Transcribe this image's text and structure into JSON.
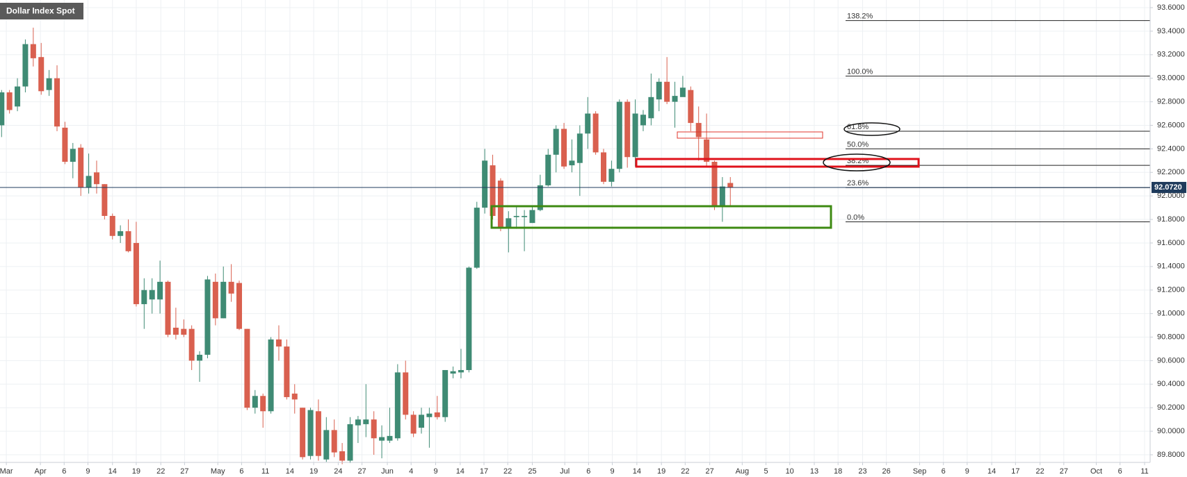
{
  "chart_data": {
    "type": "candlestick",
    "title": "Dollar Index Spot",
    "open": [
      92.6,
      92.88,
      92.76,
      92.93,
      93.29,
      93.18,
      92.9,
      93.0,
      92.58,
      92.29,
      92.41,
      92.07,
      92.2,
      92.1,
      91.83,
      91.66,
      91.7,
      91.6,
      91.08,
      91.12,
      91.12,
      91.27,
      90.88,
      90.87,
      90.87,
      90.6,
      90.65,
      91.27,
      90.96,
      91.27,
      91.26,
      90.87,
      90.2,
      90.3,
      90.17,
      90.78,
      90.72,
      90.32,
      90.2,
      89.79,
      90.17,
      89.76,
      90.01,
      89.83,
      89.75,
      90.05,
      90.06,
      90.1,
      89.92,
      89.92,
      89.94,
      90.5,
      90.14,
      90.03,
      90.12,
      90.16,
      90.12,
      90.49,
      90.5,
      90.52,
      91.39,
      91.9,
      92.26,
      92.13,
      91.73,
      91.82,
      91.82,
      91.77,
      91.88,
      92.09,
      92.35,
      92.57,
      92.26,
      92.28,
      92.53,
      92.7,
      92.37,
      92.12,
      92.23,
      92.8,
      92.33,
      92.6,
      92.66,
      92.82,
      92.97,
      92.8,
      92.84,
      92.9,
      92.62,
      92.48,
      92.29,
      91.91,
      92.11
    ],
    "high": [
      92.9,
      92.9,
      93.0,
      93.33,
      93.43,
      93.3,
      93.07,
      93.11,
      92.63,
      92.45,
      92.44,
      92.36,
      92.3,
      92.1,
      91.85,
      91.75,
      91.8,
      91.78,
      91.3,
      91.3,
      91.45,
      91.28,
      91.05,
      90.95,
      90.9,
      90.68,
      91.32,
      91.34,
      91.4,
      91.42,
      91.28,
      90.87,
      90.35,
      90.32,
      90.8,
      90.9,
      90.78,
      90.4,
      90.2,
      90.2,
      90.27,
      90.12,
      90.1,
      89.9,
      90.12,
      90.13,
      90.4,
      90.17,
      90.05,
      90.2,
      90.57,
      90.6,
      90.17,
      90.2,
      90.2,
      90.3,
      90.52,
      90.55,
      90.7,
      91.4,
      91.95,
      92.4,
      92.35,
      92.15,
      91.87,
      91.92,
      91.88,
      91.92,
      92.18,
      92.4,
      92.6,
      92.62,
      92.48,
      92.6,
      92.84,
      92.72,
      92.4,
      92.3,
      92.82,
      92.82,
      92.82,
      92.73,
      93.04,
      93.0,
      93.18,
      92.97,
      93.02,
      92.93,
      92.76,
      92.7,
      92.3,
      92.16,
      92.16
    ],
    "low": [
      92.5,
      92.7,
      92.72,
      92.88,
      93.1,
      92.86,
      92.85,
      92.55,
      92.27,
      92.15,
      92.0,
      92.02,
      92.02,
      91.8,
      91.63,
      91.6,
      91.52,
      91.06,
      90.87,
      91.0,
      91.0,
      90.8,
      90.78,
      90.8,
      90.52,
      90.42,
      90.62,
      90.9,
      90.96,
      91.1,
      90.86,
      90.18,
      90.15,
      90.03,
      90.15,
      90.6,
      90.27,
      90.15,
      89.76,
      89.76,
      89.75,
      89.74,
      89.78,
      89.72,
      89.73,
      89.9,
      89.95,
      89.8,
      89.77,
      89.9,
      89.92,
      90.1,
      89.95,
      89.98,
      89.86,
      90.1,
      90.08,
      90.45,
      90.45,
      90.5,
      91.38,
      91.85,
      91.8,
      91.7,
      91.52,
      91.72,
      91.53,
      91.77,
      91.87,
      92.08,
      92.2,
      92.23,
      92.2,
      92.0,
      92.4,
      92.35,
      92.1,
      92.08,
      92.2,
      92.24,
      92.25,
      92.55,
      92.6,
      92.72,
      92.78,
      92.58,
      92.85,
      92.55,
      92.3,
      92.25,
      91.88,
      91.78,
      91.92
    ],
    "close": [
      92.88,
      92.73,
      92.93,
      93.29,
      93.17,
      92.89,
      93.0,
      92.59,
      92.29,
      92.4,
      92.07,
      92.17,
      92.1,
      91.83,
      91.66,
      91.7,
      91.53,
      91.08,
      91.2,
      91.2,
      91.27,
      90.82,
      90.82,
      90.82,
      90.6,
      90.65,
      91.29,
      90.96,
      91.27,
      91.17,
      90.87,
      90.2,
      90.3,
      90.17,
      90.78,
      90.72,
      90.29,
      90.27,
      89.78,
      90.18,
      89.79,
      90.01,
      89.82,
      89.75,
      90.06,
      90.1,
      90.1,
      89.94,
      89.95,
      89.96,
      90.5,
      90.14,
      89.98,
      90.14,
      90.15,
      90.12,
      90.52,
      90.51,
      90.52,
      91.39,
      91.9,
      92.3,
      91.83,
      91.73,
      91.81,
      91.83,
      91.83,
      91.88,
      92.09,
      92.35,
      92.57,
      92.25,
      92.3,
      92.53,
      92.7,
      92.37,
      92.12,
      92.23,
      92.8,
      92.33,
      92.7,
      92.69,
      92.84,
      92.97,
      92.8,
      92.85,
      92.92,
      92.62,
      92.5,
      92.29,
      91.91,
      92.08,
      92.07
    ],
    "up_color": "#3f8b74",
    "down_color": "#d9604f",
    "xlim": [
      -0.2,
      145
    ],
    "xticks": [
      {
        "value": 0.6,
        "label": "Mar"
      },
      {
        "value": 4.9,
        "label": "Apr"
      },
      {
        "value": 7.9,
        "label": "6"
      },
      {
        "value": 10.9,
        "label": "9"
      },
      {
        "value": 14,
        "label": "14"
      },
      {
        "value": 17,
        "label": "19"
      },
      {
        "value": 20.1,
        "label": "22"
      },
      {
        "value": 23.1,
        "label": "27"
      },
      {
        "value": 27.3,
        "label": "May"
      },
      {
        "value": 30.3,
        "label": "6"
      },
      {
        "value": 33.3,
        "label": "11"
      },
      {
        "value": 36.4,
        "label": "14"
      },
      {
        "value": 39.4,
        "label": "19"
      },
      {
        "value": 42.5,
        "label": "24"
      },
      {
        "value": 45.5,
        "label": "27"
      },
      {
        "value": 48.7,
        "label": "Jun"
      },
      {
        "value": 51.7,
        "label": "4"
      },
      {
        "value": 54.8,
        "label": "9"
      },
      {
        "value": 57.9,
        "label": "14"
      },
      {
        "value": 60.9,
        "label": "17"
      },
      {
        "value": 63.9,
        "label": "22"
      },
      {
        "value": 67,
        "label": "25"
      },
      {
        "value": 71.1,
        "label": "Jul"
      },
      {
        "value": 74.1,
        "label": "6"
      },
      {
        "value": 77.1,
        "label": "9"
      },
      {
        "value": 80.2,
        "label": "14"
      },
      {
        "value": 83.3,
        "label": "19"
      },
      {
        "value": 86.3,
        "label": "22"
      },
      {
        "value": 89.4,
        "label": "27"
      },
      {
        "value": 93.5,
        "label": "Aug"
      },
      {
        "value": 96.5,
        "label": "5"
      },
      {
        "value": 99.5,
        "label": "10"
      },
      {
        "value": 102.6,
        "label": "13"
      },
      {
        "value": 105.6,
        "label": "18"
      },
      {
        "value": 108.7,
        "label": "23"
      },
      {
        "value": 111.7,
        "label": "26"
      },
      {
        "value": 115.9,
        "label": "Sep"
      },
      {
        "value": 118.9,
        "label": "6"
      },
      {
        "value": 121.9,
        "label": "9"
      },
      {
        "value": 125,
        "label": "14"
      },
      {
        "value": 128,
        "label": "17"
      },
      {
        "value": 131.1,
        "label": "22"
      },
      {
        "value": 134.1,
        "label": "27"
      },
      {
        "value": 138.2,
        "label": "Oct"
      },
      {
        "value": 141.2,
        "label": "6"
      },
      {
        "value": 144.3,
        "label": "11"
      }
    ],
    "ylim": [
      89.735,
      93.665
    ],
    "yticks": [
      {
        "value": 89.8,
        "label": "89.8000"
      },
      {
        "value": 90.0,
        "label": "90.0000"
      },
      {
        "value": 90.2,
        "label": "90.2000"
      },
      {
        "value": 90.4,
        "label": "90.4000"
      },
      {
        "value": 90.6,
        "label": "90.6000"
      },
      {
        "value": 90.8,
        "label": "90.8000"
      },
      {
        "value": 91.0,
        "label": "91.0000"
      },
      {
        "value": 91.2,
        "label": "91.2000"
      },
      {
        "value": 91.4,
        "label": "91.4000"
      },
      {
        "value": 91.6,
        "label": "91.6000"
      },
      {
        "value": 91.8,
        "label": "91.8000"
      },
      {
        "value": 92.0,
        "label": "92.0000"
      },
      {
        "value": 92.2,
        "label": "92.2000"
      },
      {
        "value": 92.4,
        "label": "92.4000"
      },
      {
        "value": 92.6,
        "label": "92.6000"
      },
      {
        "value": 92.8,
        "label": "92.8000"
      },
      {
        "value": 93.0,
        "label": "93.0000"
      },
      {
        "value": 93.2,
        "label": "93.2000"
      },
      {
        "value": 93.4,
        "label": "93.4000"
      },
      {
        "value": 93.6,
        "label": "93.6000"
      }
    ],
    "grid": true,
    "last_price": {
      "value": 92.072,
      "label": "92.0720"
    },
    "last_price_color": "#1f3b5c",
    "fib_levels": [
      {
        "value": 93.49,
        "label": "138.2%"
      },
      {
        "value": 93.018,
        "label": "100.0%"
      },
      {
        "value": 92.55,
        "label": "61.8%"
      },
      {
        "value": 92.4,
        "label": "50.0%"
      },
      {
        "value": 92.26,
        "label": "38.2%"
      },
      {
        "value": 92.07,
        "label": "23.6%"
      },
      {
        "value": 91.78,
        "label": "0.0%"
      }
    ]
  }
}
